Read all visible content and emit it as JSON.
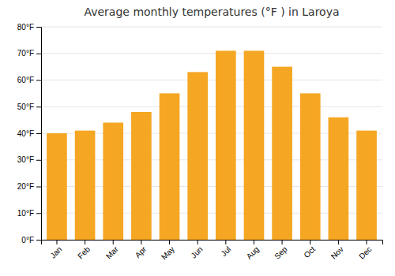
{
  "chart_data": {
    "type": "bar",
    "title": "Average monthly temperatures (°F ) in Laroya",
    "categories": [
      "Jan",
      "Feb",
      "Mar",
      "Apr",
      "May",
      "Jun",
      "Jul",
      "Aug",
      "Sep",
      "Oct",
      "Nov",
      "Dec"
    ],
    "values": [
      40,
      41,
      44,
      48,
      55,
      63,
      71,
      71,
      65,
      55,
      46,
      41
    ],
    "color": "#F5A623",
    "ylim": [
      0,
      80
    ],
    "yticks": [
      {
        "value": 0,
        "label": "0°F"
      },
      {
        "value": 10,
        "label": "10°F"
      },
      {
        "value": 20,
        "label": "20°F"
      },
      {
        "value": 30,
        "label": "30°F"
      },
      {
        "value": 40,
        "label": "40°F"
      },
      {
        "value": 50,
        "label": "50°F"
      },
      {
        "value": 60,
        "label": "60°F"
      },
      {
        "value": 70,
        "label": "70°F"
      },
      {
        "value": 80,
        "label": "80°F"
      }
    ],
    "grid": true
  }
}
